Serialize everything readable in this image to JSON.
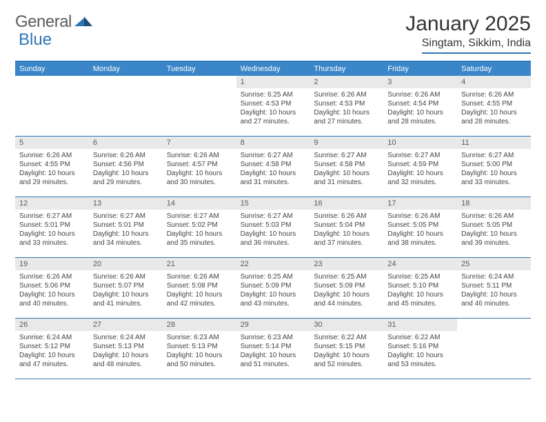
{
  "branding": {
    "word1": "General",
    "word2": "Blue",
    "logo_color": "#2e75b6"
  },
  "header": {
    "title": "January 2025",
    "location": "Singtam, Sikkim, India"
  },
  "colors": {
    "header_bar": "#3a86c8",
    "rule": "#2e75b6",
    "daynum_bg": "#e9e9e9",
    "text": "#333333"
  },
  "days_of_week": [
    "Sunday",
    "Monday",
    "Tuesday",
    "Wednesday",
    "Thursday",
    "Friday",
    "Saturday"
  ],
  "leading_blanks": 3,
  "days": [
    {
      "n": "1",
      "sr": "6:25 AM",
      "ss": "4:53 PM",
      "dl": "10 hours and 27 minutes."
    },
    {
      "n": "2",
      "sr": "6:26 AM",
      "ss": "4:53 PM",
      "dl": "10 hours and 27 minutes."
    },
    {
      "n": "3",
      "sr": "6:26 AM",
      "ss": "4:54 PM",
      "dl": "10 hours and 28 minutes."
    },
    {
      "n": "4",
      "sr": "6:26 AM",
      "ss": "4:55 PM",
      "dl": "10 hours and 28 minutes."
    },
    {
      "n": "5",
      "sr": "6:26 AM",
      "ss": "4:55 PM",
      "dl": "10 hours and 29 minutes."
    },
    {
      "n": "6",
      "sr": "6:26 AM",
      "ss": "4:56 PM",
      "dl": "10 hours and 29 minutes."
    },
    {
      "n": "7",
      "sr": "6:26 AM",
      "ss": "4:57 PM",
      "dl": "10 hours and 30 minutes."
    },
    {
      "n": "8",
      "sr": "6:27 AM",
      "ss": "4:58 PM",
      "dl": "10 hours and 31 minutes."
    },
    {
      "n": "9",
      "sr": "6:27 AM",
      "ss": "4:58 PM",
      "dl": "10 hours and 31 minutes."
    },
    {
      "n": "10",
      "sr": "6:27 AM",
      "ss": "4:59 PM",
      "dl": "10 hours and 32 minutes."
    },
    {
      "n": "11",
      "sr": "6:27 AM",
      "ss": "5:00 PM",
      "dl": "10 hours and 33 minutes."
    },
    {
      "n": "12",
      "sr": "6:27 AM",
      "ss": "5:01 PM",
      "dl": "10 hours and 33 minutes."
    },
    {
      "n": "13",
      "sr": "6:27 AM",
      "ss": "5:01 PM",
      "dl": "10 hours and 34 minutes."
    },
    {
      "n": "14",
      "sr": "6:27 AM",
      "ss": "5:02 PM",
      "dl": "10 hours and 35 minutes."
    },
    {
      "n": "15",
      "sr": "6:27 AM",
      "ss": "5:03 PM",
      "dl": "10 hours and 36 minutes."
    },
    {
      "n": "16",
      "sr": "6:26 AM",
      "ss": "5:04 PM",
      "dl": "10 hours and 37 minutes."
    },
    {
      "n": "17",
      "sr": "6:26 AM",
      "ss": "5:05 PM",
      "dl": "10 hours and 38 minutes."
    },
    {
      "n": "18",
      "sr": "6:26 AM",
      "ss": "5:05 PM",
      "dl": "10 hours and 39 minutes."
    },
    {
      "n": "19",
      "sr": "6:26 AM",
      "ss": "5:06 PM",
      "dl": "10 hours and 40 minutes."
    },
    {
      "n": "20",
      "sr": "6:26 AM",
      "ss": "5:07 PM",
      "dl": "10 hours and 41 minutes."
    },
    {
      "n": "21",
      "sr": "6:26 AM",
      "ss": "5:08 PM",
      "dl": "10 hours and 42 minutes."
    },
    {
      "n": "22",
      "sr": "6:25 AM",
      "ss": "5:09 PM",
      "dl": "10 hours and 43 minutes."
    },
    {
      "n": "23",
      "sr": "6:25 AM",
      "ss": "5:09 PM",
      "dl": "10 hours and 44 minutes."
    },
    {
      "n": "24",
      "sr": "6:25 AM",
      "ss": "5:10 PM",
      "dl": "10 hours and 45 minutes."
    },
    {
      "n": "25",
      "sr": "6:24 AM",
      "ss": "5:11 PM",
      "dl": "10 hours and 46 minutes."
    },
    {
      "n": "26",
      "sr": "6:24 AM",
      "ss": "5:12 PM",
      "dl": "10 hours and 47 minutes."
    },
    {
      "n": "27",
      "sr": "6:24 AM",
      "ss": "5:13 PM",
      "dl": "10 hours and 48 minutes."
    },
    {
      "n": "28",
      "sr": "6:23 AM",
      "ss": "5:13 PM",
      "dl": "10 hours and 50 minutes."
    },
    {
      "n": "29",
      "sr": "6:23 AM",
      "ss": "5:14 PM",
      "dl": "10 hours and 51 minutes."
    },
    {
      "n": "30",
      "sr": "6:22 AM",
      "ss": "5:15 PM",
      "dl": "10 hours and 52 minutes."
    },
    {
      "n": "31",
      "sr": "6:22 AM",
      "ss": "5:16 PM",
      "dl": "10 hours and 53 minutes."
    }
  ],
  "labels": {
    "sunrise": "Sunrise: ",
    "sunset": "Sunset: ",
    "daylight": "Daylight: "
  }
}
